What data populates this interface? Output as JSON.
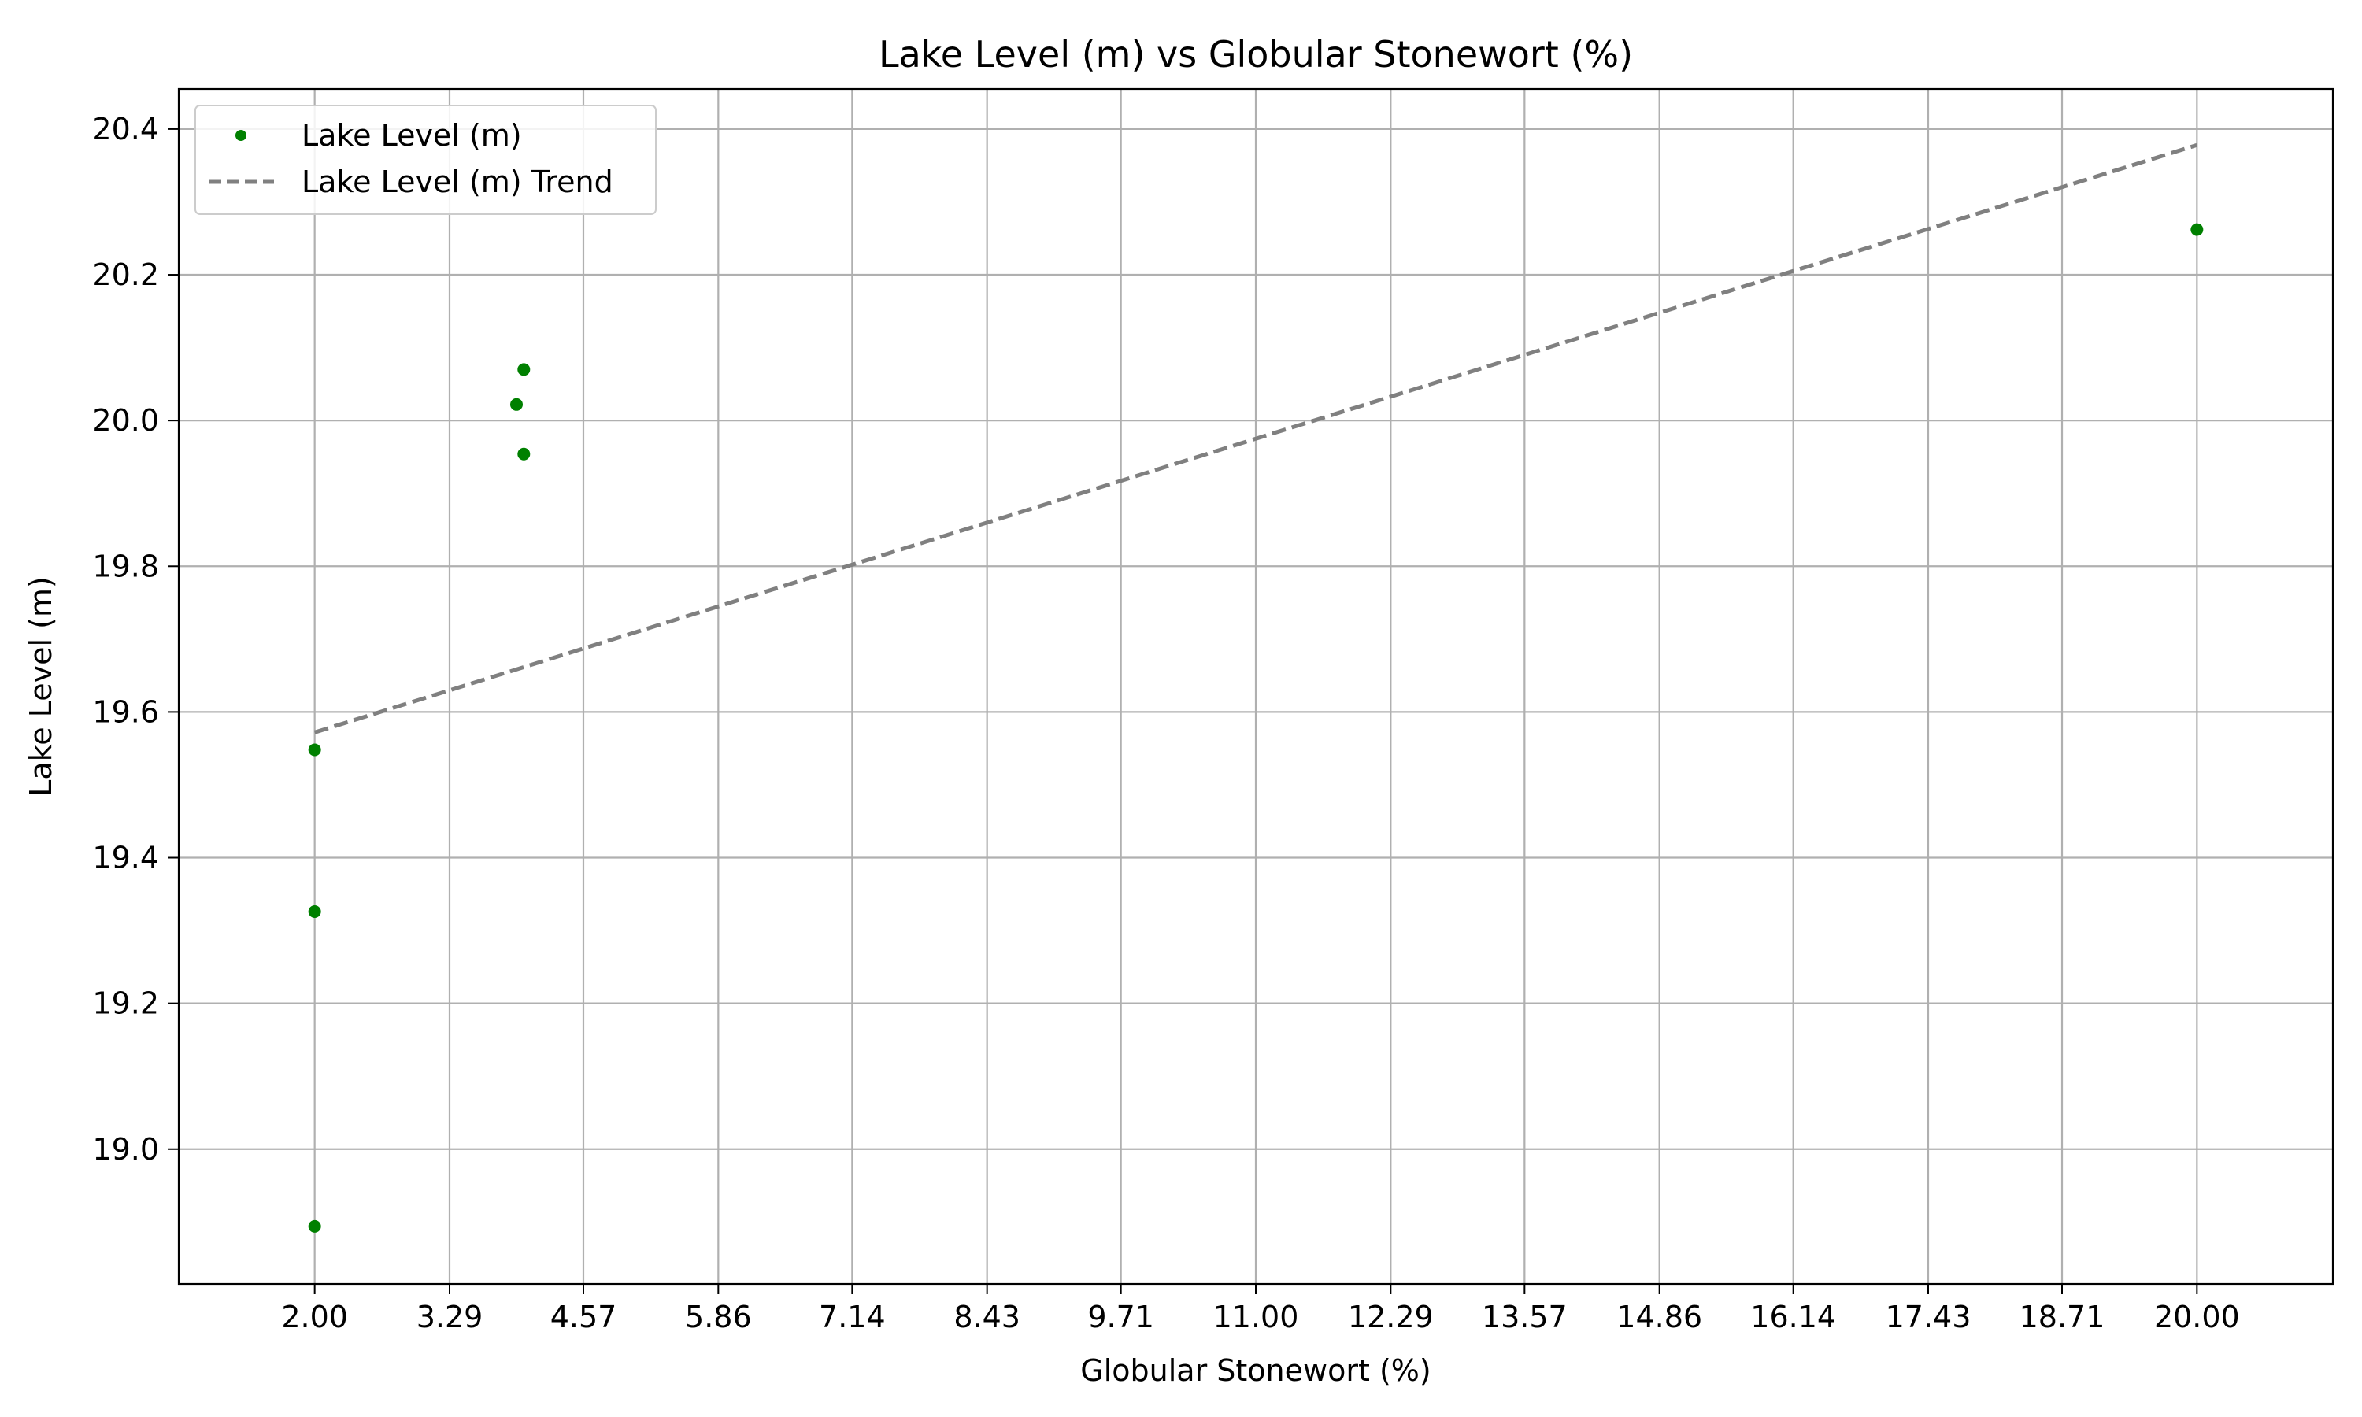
{
  "chart_data": {
    "type": "scatter",
    "title": "Lake Level (m) vs Globular Stonewort (%)",
    "xlabel": "Globular Stonewort (%)",
    "ylabel": "Lake Level (m)",
    "xlim": [
      0.7,
      21.3
    ],
    "ylim": [
      18.815,
      20.455
    ],
    "xticks": [
      "2.00",
      "3.29",
      "4.57",
      "5.86",
      "7.14",
      "8.43",
      "9.71",
      "11.00",
      "12.29",
      "13.57",
      "14.86",
      "16.14",
      "17.43",
      "18.71",
      "20.00"
    ],
    "yticks": [
      "19.0",
      "19.2",
      "19.4",
      "19.6",
      "19.8",
      "20.0",
      "20.2",
      "20.4"
    ],
    "grid": true,
    "legend_position": "upper-left",
    "series": [
      {
        "name": "Lake Level (m)",
        "kind": "scatter",
        "color": "#008000",
        "points": [
          {
            "x": 2.0,
            "y": 19.548
          },
          {
            "x": 2.0,
            "y": 19.326
          },
          {
            "x": 2.0,
            "y": 18.894
          },
          {
            "x": 3.93,
            "y": 20.022
          },
          {
            "x": 4.0,
            "y": 20.07
          },
          {
            "x": 4.0,
            "y": 19.954
          },
          {
            "x": 20.0,
            "y": 20.262
          }
        ]
      },
      {
        "name": "Lake Level (m) Trend",
        "kind": "line",
        "style": "dashed",
        "color": "#808080",
        "points": [
          {
            "x": 2.0,
            "y": 19.572
          },
          {
            "x": 20.0,
            "y": 20.378
          }
        ]
      }
    ]
  }
}
